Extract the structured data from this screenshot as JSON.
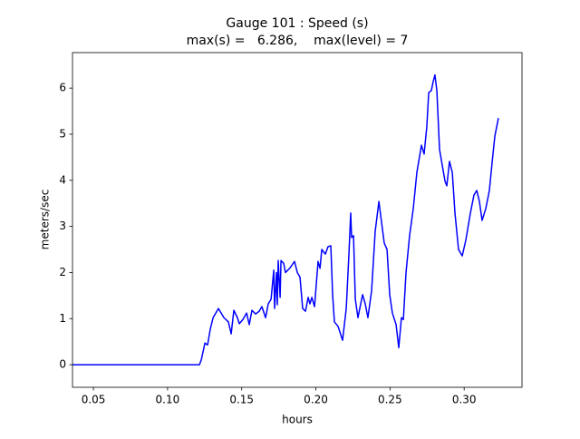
{
  "chart_data": {
    "type": "line",
    "title": "Gauge 101 : Speed (s)",
    "subtitle": "max(s) =   6.286,    max(level) = 7",
    "x_label": "hours",
    "y_label": "meters/sec",
    "color": "#0000ff",
    "x": [
      0.0359,
      0.1215,
      0.1227,
      0.1252,
      0.127,
      0.1288,
      0.1307,
      0.1343,
      0.138,
      0.141,
      0.1429,
      0.1447,
      0.1471,
      0.1484,
      0.1508,
      0.1533,
      0.1551,
      0.1569,
      0.1594,
      0.1618,
      0.1636,
      0.1661,
      0.1679,
      0.1698,
      0.1716,
      0.1722,
      0.1734,
      0.174,
      0.1746,
      0.1759,
      0.1765,
      0.1783,
      0.1795,
      0.1826,
      0.1856,
      0.1875,
      0.1893,
      0.1911,
      0.193,
      0.1948,
      0.196,
      0.1973,
      0.1991,
      0.2003,
      0.2015,
      0.2028,
      0.204,
      0.2064,
      0.2082,
      0.2101,
      0.2113,
      0.2125,
      0.215,
      0.218,
      0.2205,
      0.2223,
      0.2235,
      0.2241,
      0.2254,
      0.2266,
      0.2284,
      0.2296,
      0.2315,
      0.2333,
      0.2351,
      0.2376,
      0.24,
      0.2425,
      0.2443,
      0.2461,
      0.248,
      0.2498,
      0.2516,
      0.2541,
      0.2559,
      0.2577,
      0.259,
      0.2608,
      0.2632,
      0.2657,
      0.2681,
      0.2712,
      0.273,
      0.2748,
      0.2761,
      0.2779,
      0.2791,
      0.2803,
      0.2816,
      0.2834,
      0.2852,
      0.2871,
      0.2883,
      0.2901,
      0.292,
      0.2938,
      0.2962,
      0.2987,
      0.3011,
      0.3042,
      0.3066,
      0.3085,
      0.3103,
      0.3121,
      0.3146,
      0.317,
      0.3188,
      0.3207,
      0.3231
    ],
    "values": [
      0,
      0,
      0.1,
      0.47,
      0.43,
      0.77,
      1.02,
      1.22,
      1.02,
      0.93,
      0.67,
      1.18,
      1.02,
      0.89,
      0.98,
      1.12,
      0.87,
      1.18,
      1.1,
      1.16,
      1.26,
      1.02,
      1.32,
      1.42,
      2.05,
      1.22,
      2.0,
      1.3,
      2.26,
      1.46,
      2.26,
      2.2,
      2.0,
      2.1,
      2.24,
      2.0,
      1.9,
      1.22,
      1.16,
      1.46,
      1.32,
      1.46,
      1.26,
      1.75,
      2.24,
      2.09,
      2.5,
      2.4,
      2.56,
      2.58,
      1.52,
      0.93,
      0.83,
      0.53,
      1.22,
      2.4,
      3.29,
      2.76,
      2.8,
      1.42,
      1.02,
      1.22,
      1.52,
      1.32,
      1.02,
      1.61,
      2.89,
      3.54,
      3.09,
      2.64,
      2.5,
      1.52,
      1.12,
      0.87,
      0.37,
      1.02,
      0.98,
      2.0,
      2.8,
      3.39,
      4.17,
      4.76,
      4.57,
      5.16,
      5.9,
      5.95,
      6.14,
      6.286,
      5.94,
      4.67,
      4.33,
      3.98,
      3.88,
      4.41,
      4.17,
      3.29,
      2.5,
      2.36,
      2.7,
      3.29,
      3.68,
      3.78,
      3.54,
      3.13,
      3.39,
      3.78,
      4.37,
      4.96,
      5.35
    ],
    "xlim": [
      0.0359,
      0.339
    ],
    "ylim": [
      -0.49,
      6.77
    ],
    "xticks": [
      0.05,
      {
        "value": 0.1,
        "label": "0.10"
      },
      0.15,
      {
        "value": 0.2,
        "label": "0.20"
      },
      0.25,
      {
        "value": 0.3,
        "label": "0.30"
      }
    ],
    "yticks": [
      0,
      1,
      2,
      3,
      4,
      5,
      6
    ]
  }
}
